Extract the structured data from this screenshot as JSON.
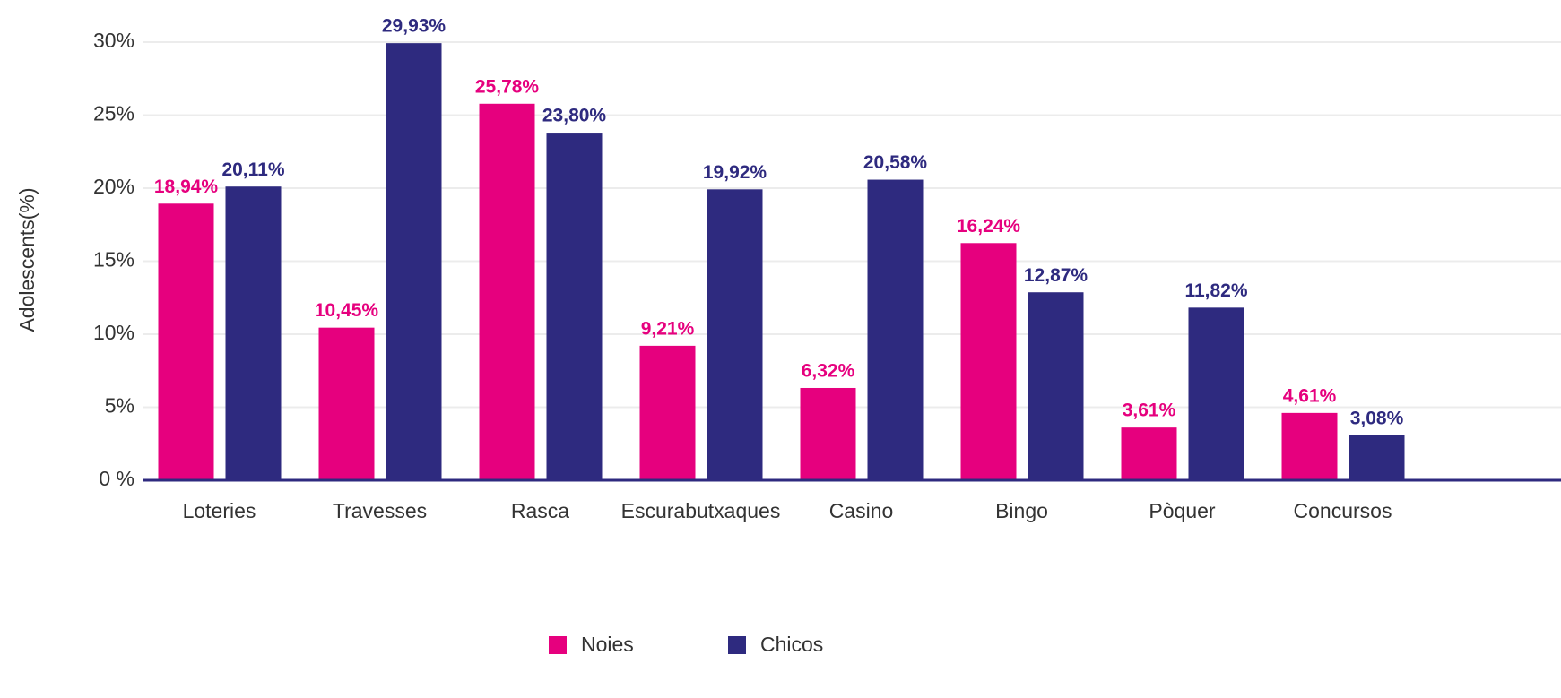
{
  "chart_data": {
    "type": "bar",
    "y_label": "Adolescents(%)",
    "categories": [
      "Loteries",
      "Travesses",
      "Rasca",
      "Escurabutxaques",
      "Casino",
      "Bingo",
      "Pòquer",
      "Concursos"
    ],
    "series": [
      {
        "name": "Noies",
        "color": "#e6007e",
        "values": [
          18.94,
          10.45,
          25.78,
          9.21,
          6.32,
          16.24,
          3.61,
          4.61
        ],
        "value_labels": [
          "18,94%",
          "10,45%",
          "25,78%",
          "9,21%",
          "6,32%",
          "16,24%",
          "3,61%",
          "4,61%"
        ]
      },
      {
        "name": "Chicos",
        "color": "#2e2a7f",
        "values": [
          20.11,
          29.93,
          23.8,
          19.92,
          20.58,
          12.87,
          11.82,
          3.08
        ],
        "value_labels": [
          "20,11%",
          "29,93%",
          "23,80%",
          "19,92%",
          "20,58%",
          "12,87%",
          "11,82%",
          "3,08%"
        ]
      }
    ],
    "ylim": [
      0,
      30
    ],
    "yticks": [
      {
        "value": 0,
        "label": "0 %"
      },
      {
        "value": 5,
        "label": "5%"
      },
      {
        "value": 10,
        "label": "10%"
      },
      {
        "value": 15,
        "label": "15%"
      },
      {
        "value": 20,
        "label": "20%"
      },
      {
        "value": 25,
        "label": "25%"
      },
      {
        "value": 30,
        "label": "30%"
      }
    ],
    "grid": true,
    "legend": "bottom"
  }
}
